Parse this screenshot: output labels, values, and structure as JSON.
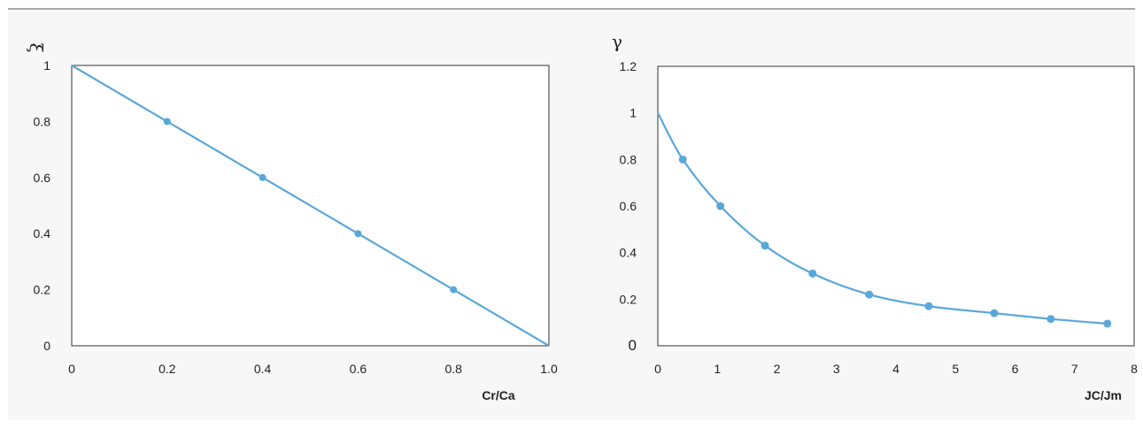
{
  "accent_color": "#5aa7d9",
  "chart_data": [
    {
      "type": "line",
      "title": "",
      "xlabel": "Cr/Ca",
      "ylabel": "ξ",
      "xlim": [
        0,
        1.0
      ],
      "ylim": [
        0,
        1
      ],
      "x_ticks": [
        "0",
        "0.2",
        "0.4",
        "0.6",
        "0.8",
        "1.0"
      ],
      "y_ticks": [
        "0",
        "0.2",
        "0.4",
        "0.6",
        "0.8",
        "1"
      ],
      "grid": false,
      "series": [
        {
          "x": [
            0,
            0.2,
            0.4,
            0.6,
            0.8,
            1.0
          ],
          "y": [
            1.0,
            0.8,
            0.6,
            0.4,
            0.2,
            0.0
          ],
          "markers": [
            false,
            true,
            true,
            true,
            true,
            false
          ]
        }
      ]
    },
    {
      "type": "line",
      "title": "",
      "xlabel": "JC/Jm",
      "ylabel": "γ",
      "xlim": [
        0,
        8
      ],
      "ylim": [
        0,
        1.2
      ],
      "x_ticks": [
        "0",
        "1",
        "2",
        "3",
        "4",
        "5",
        "6",
        "7",
        "8"
      ],
      "y_ticks": [
        "0",
        "0.2",
        "0.4",
        "0.6",
        "0.8",
        "1",
        "1.2"
      ],
      "grid": false,
      "series": [
        {
          "x": [
            0,
            0.42,
            1.05,
            1.8,
            2.6,
            3.55,
            4.55,
            5.65,
            6.6,
            7.55
          ],
          "y": [
            1.0,
            0.8,
            0.6,
            0.43,
            0.31,
            0.22,
            0.17,
            0.14,
            0.115,
            0.095
          ],
          "markers": [
            false,
            true,
            true,
            true,
            true,
            true,
            true,
            true,
            true,
            true
          ]
        }
      ]
    }
  ]
}
